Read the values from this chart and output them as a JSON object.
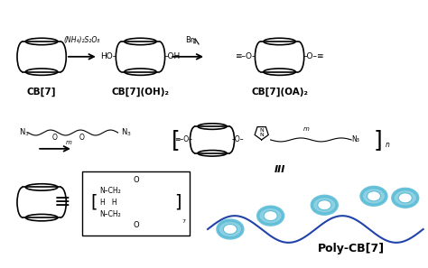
{
  "background_color": "#ffffff",
  "text_color": "#000000",
  "cb7_color": "#000000",
  "teal_color": "#5bbcd6",
  "arrow_color": "#000000",
  "labels": {
    "cb7": "CB[7]",
    "cb7oh2": "CB[7](OH)₂",
    "cb7oa2": "CB[7](OA)₂",
    "reagent1": "(NH₄)₂S₂O₈",
    "reagent2": "Br",
    "polymer_label": "III",
    "poly_cb7": "Poly-CB[7]"
  },
  "figsize": [
    4.74,
    2.97
  ],
  "dpi": 100
}
